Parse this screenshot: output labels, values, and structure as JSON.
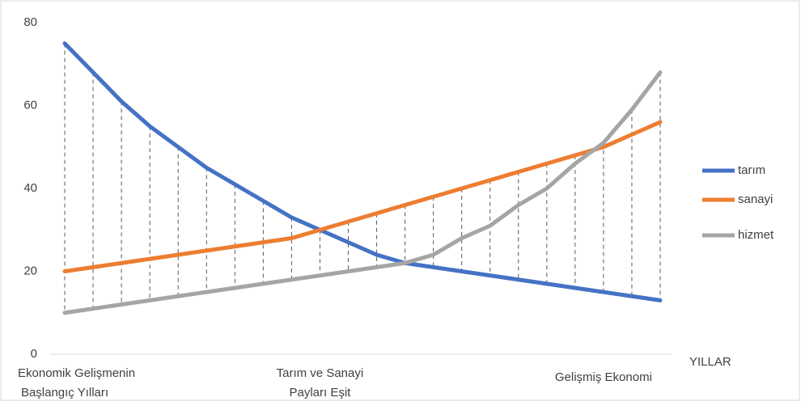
{
  "chart_data": {
    "type": "line",
    "categories": [
      [
        "Ekonomik Gelişmenin",
        "Başlangıç Yılları"
      ],
      null,
      null,
      null,
      null,
      null,
      null,
      null,
      null,
      [
        "Tarım ve Sanayi",
        "Payları Eşit"
      ],
      null,
      null,
      null,
      null,
      null,
      null,
      null,
      null,
      null,
      [
        "Gelişmiş Ekonomi"
      ],
      null,
      null
    ],
    "xlabel": "YILLAR",
    "series": [
      {
        "name": "tarım",
        "color": "#4472c4",
        "values": [
          75,
          68,
          61,
          55,
          50,
          45,
          41,
          37,
          33,
          30,
          27,
          24,
          22,
          21,
          20,
          19,
          18,
          17,
          16,
          15,
          14,
          13
        ]
      },
      {
        "name": "sanayi",
        "color": "#ed7d31",
        "values": [
          20,
          21,
          22,
          23,
          24,
          25,
          26,
          27,
          28,
          30,
          32,
          34,
          36,
          38,
          40,
          42,
          44,
          46,
          48,
          50,
          53,
          56
        ]
      },
      {
        "name": "hizmet",
        "color": "#a5a5a5",
        "values": [
          10,
          11,
          12,
          13,
          14,
          15,
          16,
          17,
          18,
          19,
          20,
          21,
          22,
          24,
          28,
          31,
          36,
          40,
          46,
          51,
          59,
          68
        ]
      }
    ],
    "ylim": [
      0,
      80
    ],
    "yticks": [
      0,
      20,
      40,
      60,
      80
    ],
    "grid": false,
    "hilo_lines": true,
    "legend": "right"
  }
}
